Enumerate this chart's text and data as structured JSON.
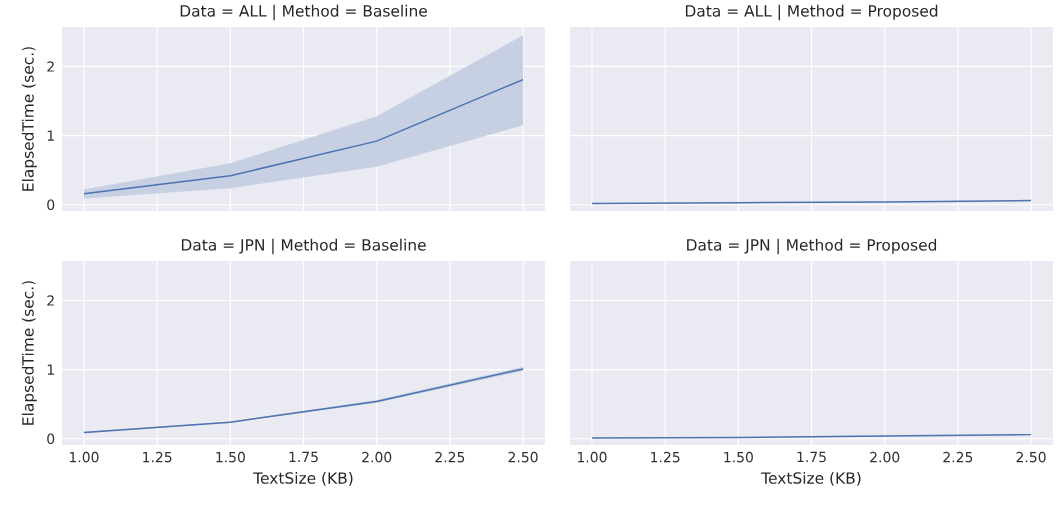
{
  "chart_data": [
    {
      "type": "line",
      "title": "Data = ALL | Method = Baseline",
      "ylabel": "ElapsedTime (sec.)",
      "x": [
        1.0,
        1.5,
        2.0,
        2.5
      ],
      "series": [
        {
          "color": "#4c72b0",
          "values": [
            0.16,
            0.42,
            0.92,
            1.81
          ],
          "lower": [
            0.09,
            0.24,
            0.55,
            1.15
          ],
          "upper": [
            0.22,
            0.6,
            1.28,
            2.45
          ]
        }
      ],
      "xlim": [
        0.925,
        2.575
      ],
      "ylim": [
        -0.09,
        2.57
      ],
      "xticks": [
        {
          "value": 1.0,
          "label": null
        },
        {
          "value": 1.25,
          "label": null
        },
        {
          "value": 1.5,
          "label": null
        },
        {
          "value": 1.75,
          "label": null
        },
        {
          "value": 2.0,
          "label": null
        },
        {
          "value": 2.25,
          "label": null
        },
        {
          "value": 2.5,
          "label": null
        }
      ],
      "yticks": [
        0,
        1,
        2
      ],
      "grid": true,
      "tick_labels": "y"
    },
    {
      "type": "line",
      "title": "Data = ALL | Method = Proposed",
      "x": [
        1.0,
        1.5,
        2.0,
        2.5
      ],
      "series": [
        {
          "color": "#4c72b0",
          "values": [
            0.02,
            0.03,
            0.04,
            0.06
          ]
        }
      ],
      "xlim": [
        0.925,
        2.575
      ],
      "ylim": [
        -0.09,
        2.57
      ],
      "xticks": [
        {
          "value": 1.0,
          "label": null
        },
        {
          "value": 1.25,
          "label": null
        },
        {
          "value": 1.5,
          "label": null
        },
        {
          "value": 1.75,
          "label": null
        },
        {
          "value": 2.0,
          "label": null
        },
        {
          "value": 2.25,
          "label": null
        },
        {
          "value": 2.5,
          "label": null
        }
      ],
      "yticks": [
        {
          "value": 0,
          "label": null
        },
        {
          "value": 1,
          "label": null
        },
        {
          "value": 2,
          "label": null
        }
      ],
      "grid": true,
      "tick_labels": false
    },
    {
      "type": "line",
      "title": "Data = JPN | Method = Baseline",
      "xlabel": "TextSize (KB)",
      "ylabel": "ElapsedTime (sec.)",
      "x": [
        1.0,
        1.5,
        2.0,
        2.5
      ],
      "series": [
        {
          "color": "#4c72b0",
          "values": [
            0.09,
            0.24,
            0.54,
            1.01
          ],
          "lower": [
            0.08,
            0.23,
            0.52,
            0.98
          ],
          "upper": [
            0.1,
            0.25,
            0.56,
            1.04
          ]
        }
      ],
      "xlim": [
        0.925,
        2.575
      ],
      "ylim": [
        -0.09,
        2.57
      ],
      "xticks": [
        {
          "value": 1.0,
          "label": "1.00"
        },
        {
          "value": 1.25,
          "label": "1.25"
        },
        {
          "value": 1.5,
          "label": "1.50"
        },
        {
          "value": 1.75,
          "label": "1.75"
        },
        {
          "value": 2.0,
          "label": "2.00"
        },
        {
          "value": 2.25,
          "label": "2.25"
        },
        {
          "value": 2.5,
          "label": "2.50"
        }
      ],
      "yticks": [
        0,
        1,
        2
      ],
      "grid": true
    },
    {
      "type": "line",
      "title": "Data = JPN | Method = Proposed",
      "xlabel": "TextSize (KB)",
      "x": [
        1.0,
        1.5,
        2.0,
        2.5
      ],
      "series": [
        {
          "color": "#4c72b0",
          "values": [
            0.01,
            0.02,
            0.04,
            0.06
          ]
        }
      ],
      "xlim": [
        0.925,
        2.575
      ],
      "ylim": [
        -0.09,
        2.57
      ],
      "xticks": [
        {
          "value": 1.0,
          "label": "1.00"
        },
        {
          "value": 1.25,
          "label": "1.25"
        },
        {
          "value": 1.5,
          "label": "1.50"
        },
        {
          "value": 1.75,
          "label": "1.75"
        },
        {
          "value": 2.0,
          "label": "2.00"
        },
        {
          "value": 2.25,
          "label": "2.25"
        },
        {
          "value": 2.5,
          "label": "2.50"
        }
      ],
      "yticks": [
        {
          "value": 0,
          "label": null
        },
        {
          "value": 1,
          "label": null
        },
        {
          "value": 2,
          "label": null
        }
      ],
      "grid": true,
      "tick_labels": "x"
    }
  ]
}
